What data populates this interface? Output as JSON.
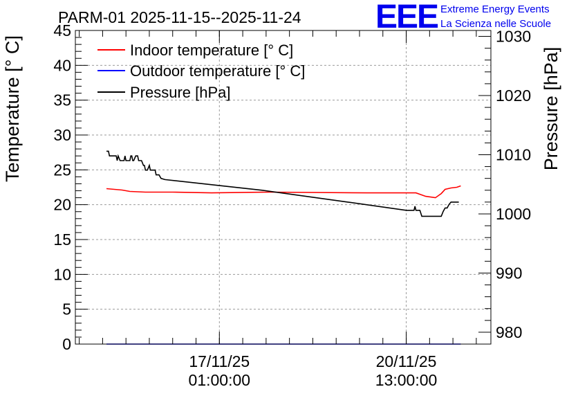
{
  "chart_data": {
    "type": "line",
    "title": "PARM-01 2025-11-15--2025-11-24",
    "ylabel_left": "Temperature [° C]",
    "ylabel_right": "Pressure [hPa]",
    "ylim_left": [
      0,
      45
    ],
    "ylim_right": [
      978,
      1031
    ],
    "xlim_hours": [
      0,
      213.5
    ],
    "left_ticks": [
      "0",
      "5",
      "10",
      "15",
      "20",
      "25",
      "30",
      "35",
      "40",
      "45"
    ],
    "right_ticks": [
      "980",
      "990",
      "1000",
      "1010",
      "1020",
      "1030"
    ],
    "x_ticks": [
      {
        "hours": 74.0,
        "date": "17/11/25",
        "time": "01:00:00"
      },
      {
        "hours": 170.0,
        "date": "20/11/25",
        "time": "13:00:00"
      }
    ],
    "grid": true,
    "legend_position": "top-left",
    "series": [
      {
        "name": "Indoor temperature [° C]",
        "color": "#ff0000",
        "axis": "left",
        "x": [
          16,
          20,
          24,
          28,
          36,
          50,
          70,
          100,
          150,
          175,
          180,
          185,
          188,
          190,
          193,
          196,
          198
        ],
        "y": [
          22.3,
          22.2,
          22.1,
          21.9,
          21.8,
          21.8,
          21.7,
          21.8,
          21.7,
          21.7,
          21.2,
          21.0,
          21.6,
          22.2,
          22.4,
          22.5,
          22.7
        ]
      },
      {
        "name": "Outdoor temperature [° C]",
        "color": "#0000ff",
        "axis": "left",
        "x": [
          16,
          198
        ],
        "y": [
          0,
          0
        ]
      },
      {
        "name": "Pressure [hPa]",
        "color": "#000000",
        "axis": "right",
        "x": [
          16,
          17,
          17.5,
          18,
          19,
          20,
          21,
          21.5,
          22,
          23,
          25,
          25.5,
          26,
          27,
          28,
          28.5,
          29,
          29.5,
          30,
          31,
          32,
          32.5,
          33,
          34,
          35,
          35.5,
          36,
          37,
          38,
          38.5,
          39,
          40,
          41,
          41.5,
          42,
          43,
          44,
          46,
          96,
          140,
          170,
          173,
          174,
          174.5,
          175,
          177,
          178,
          185,
          186,
          188,
          189,
          190,
          191,
          192,
          193,
          195,
          197
        ],
        "y": [
          1010.6,
          1010.6,
          1009.8,
          1009.8,
          1009.8,
          1009.8,
          1009.8,
          1009.0,
          1009.8,
          1009.0,
          1009.0,
          1009.8,
          1009.0,
          1009.0,
          1009.0,
          1009.8,
          1009.8,
          1009.0,
          1009.0,
          1009.8,
          1009.8,
          1009.0,
          1009.0,
          1009.0,
          1008.2,
          1008.2,
          1007.4,
          1007.4,
          1008.2,
          1007.4,
          1007.4,
          1007.4,
          1007.4,
          1006.6,
          1006.6,
          1006.6,
          1006.0,
          1005.8,
          1004.0,
          1002.0,
          1000.6,
          1000.6,
          1000.6,
          1001.3,
          1000.6,
          1000.6,
          999.6,
          999.6,
          999.6,
          999.6,
          1000.4,
          1001.0,
          1001.0,
          1001.6,
          1002.0,
          1002.0,
          1002.0
        ]
      }
    ]
  },
  "logo": {
    "text": "EEE",
    "line1": "Extreme Energy Events",
    "line2": "La Scienza nelle Scuole",
    "color": "#0000ee"
  }
}
